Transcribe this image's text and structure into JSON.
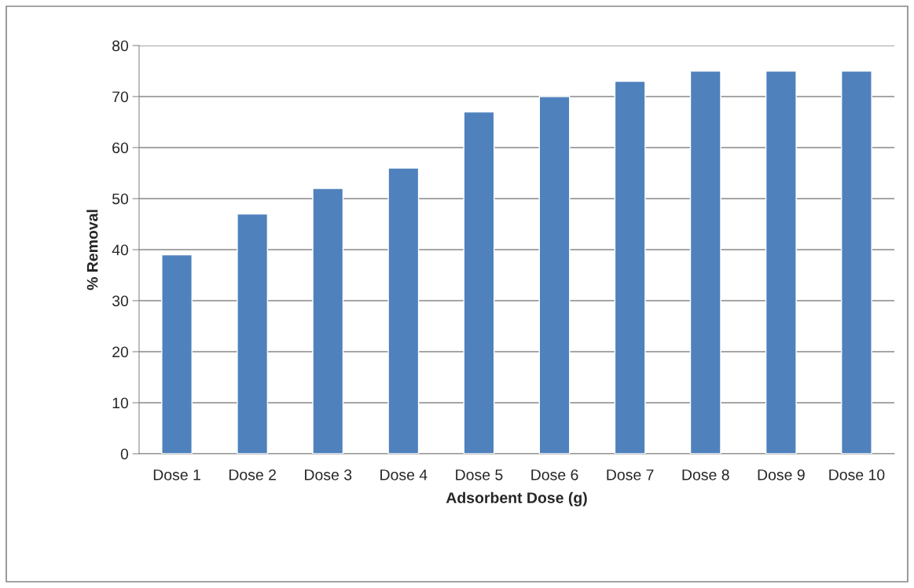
{
  "chart_data": {
    "type": "bar",
    "xlabel": "Adsorbent Dose (g)",
    "ylabel": "% Removal",
    "categories": [
      "Dose 1",
      "Dose 2",
      "Dose 3",
      "Dose 4",
      "Dose 5",
      "Dose 6",
      "Dose 7",
      "Dose 8",
      "Dose 9",
      "Dose 10"
    ],
    "values": [
      39,
      47,
      52,
      56,
      67,
      70,
      73,
      75,
      75,
      75
    ],
    "color": "#4f81bd",
    "ylim": [
      0,
      80
    ],
    "yticks": [
      0,
      10,
      20,
      30,
      40,
      50,
      60,
      70,
      80
    ],
    "grid": "y",
    "legend": false
  }
}
